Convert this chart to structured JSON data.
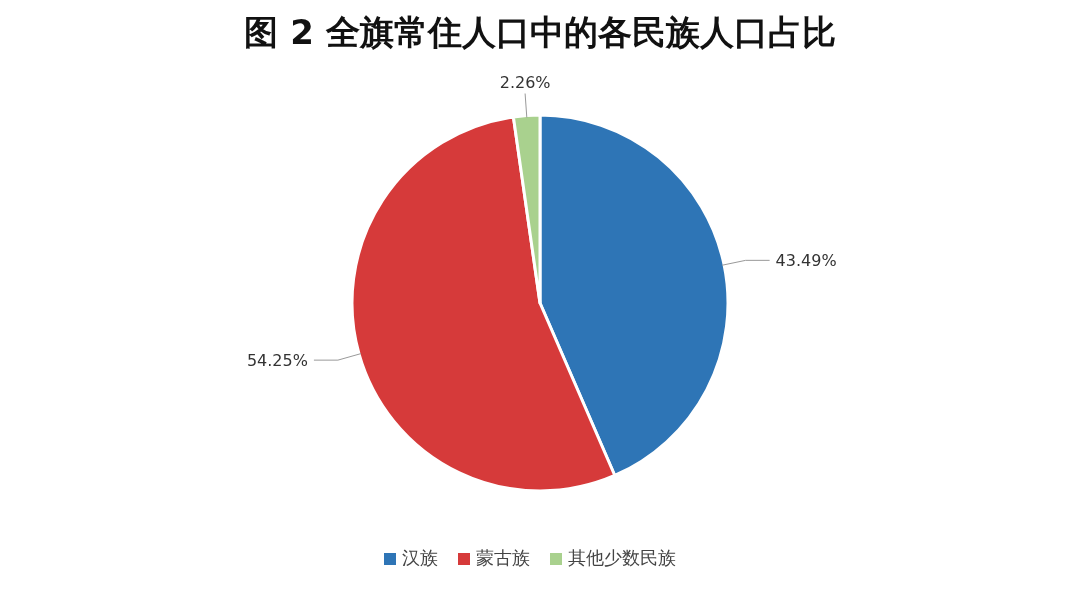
{
  "chart_data": {
    "type": "pie",
    "title": "图 2 全旗常住人口中的各民族人口占比",
    "categories": [
      "汉族",
      "蒙古族",
      "其他少数民族"
    ],
    "values": [
      43.49,
      54.25,
      2.26
    ],
    "colors": [
      "#2e75b6",
      "#d63a3a",
      "#a9d18e"
    ],
    "value_labels": [
      "43.49%",
      "54.25%",
      "2.26%"
    ],
    "legend": "bottom"
  }
}
